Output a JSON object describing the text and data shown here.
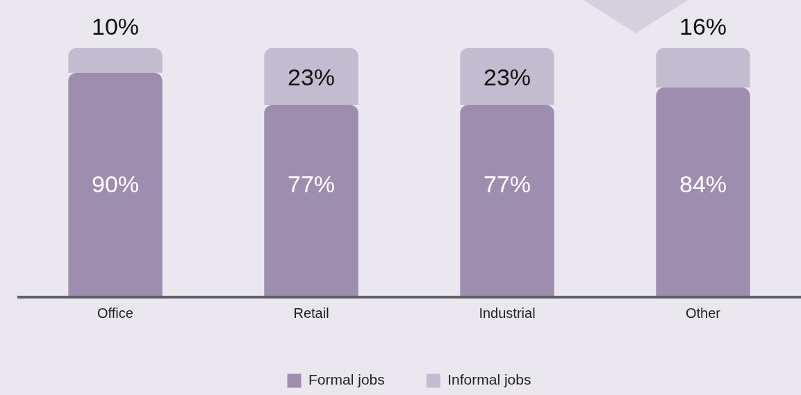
{
  "chart_data": {
    "type": "bar",
    "stacked": true,
    "categories": [
      "Office",
      "Retail",
      "Industrial",
      "Other"
    ],
    "series": [
      {
        "name": "Formal jobs",
        "color": "#9d8daf",
        "values": [
          90,
          77,
          77,
          84
        ],
        "value_labels": [
          "90%",
          "77%",
          "77%",
          "84%"
        ]
      },
      {
        "name": "Informal jobs",
        "color": "#c3bbcf",
        "values": [
          10,
          23,
          23,
          16
        ],
        "value_labels": [
          "10%",
          "23%",
          "23%",
          "16%"
        ]
      }
    ],
    "ylim": [
      0,
      100
    ],
    "tick_labels": "x",
    "grid": false,
    "legend": "bottom"
  }
}
